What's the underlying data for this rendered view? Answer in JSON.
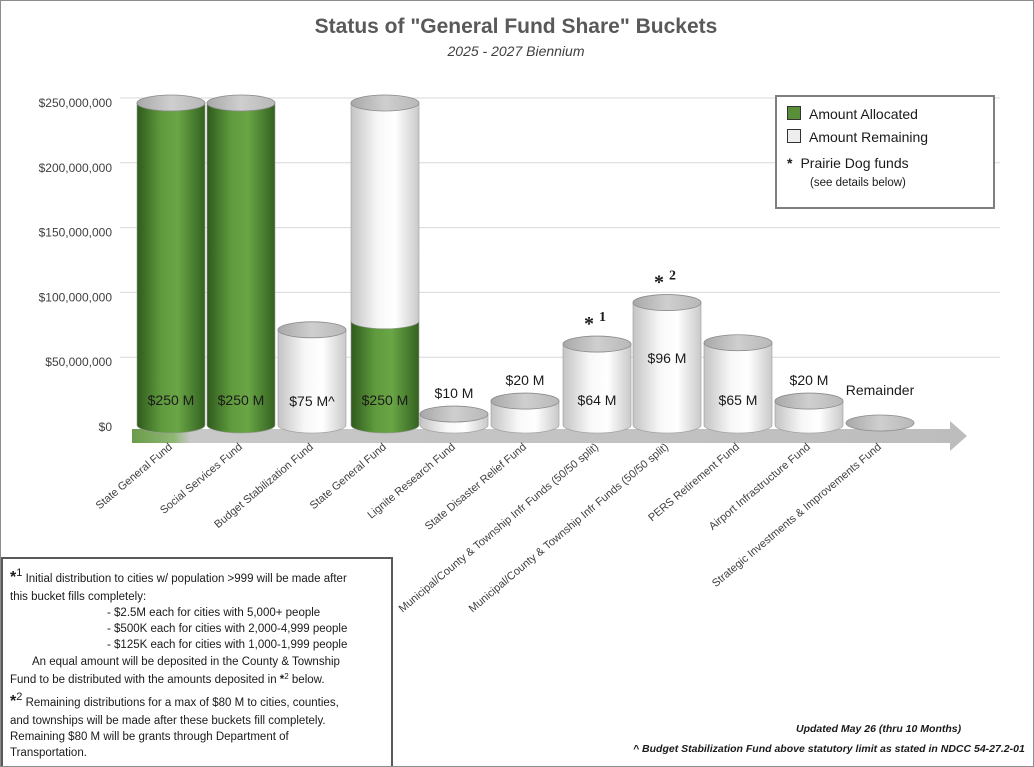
{
  "chart_data": {
    "type": "bar",
    "title": "Status of \"General Fund Share\" Buckets",
    "subtitle": "2025 - 2027 Biennium",
    "ylim": [
      0,
      250000000
    ],
    "yticks": [
      "$0",
      "$50,000,000",
      "$100,000,000",
      "$150,000,000",
      "$200,000,000",
      "$250,000,000"
    ],
    "categories": [
      "State General Fund",
      "Social Services Fund",
      "Budget Stabilization Fund",
      "State General Fund",
      "Lignite Research Fund",
      "State Disaster Relief Fund",
      "Municipal/County & Township Infr Funds (50/50 split)",
      "Municipal/County & Township Infr Funds (50/50 split)",
      "PERS Retirement Fund",
      "Airport Infrastructure Fund",
      "Strategic Investments & Improvements Fund"
    ],
    "series": [
      {
        "name": "Amount Allocated",
        "values": [
          250000000,
          250000000,
          0,
          82000000,
          0,
          0,
          0,
          0,
          0,
          0,
          0
        ]
      },
      {
        "name": "Amount Remaining",
        "values": [
          0,
          0,
          75000000,
          168000000,
          10000000,
          20000000,
          64000000,
          96000000,
          65000000,
          20000000,
          0
        ]
      }
    ],
    "data_labels": [
      "$250 M",
      "$250 M",
      "$75 M^",
      "$250 M",
      "$10 M",
      "$20 M",
      "$64 M",
      "$96 M",
      "$65 M",
      "$20 M",
      "Remainder"
    ],
    "markers": [
      "",
      "",
      "",
      "",
      "",
      "",
      "*1",
      "*2",
      "",
      "",
      ""
    ],
    "legend": {
      "placement": "top-right",
      "note": "(see details below)",
      "marker_label": "Prairie Dog funds"
    },
    "colors": {
      "allocated": "#5a8f3a",
      "remaining": "#ececec"
    }
  },
  "legend": {
    "allocated": "Amount Allocated",
    "remaining": "Amount Remaining",
    "star": "*",
    "prairie": "Prairie Dog funds",
    "details": "(see details below)"
  },
  "notes": {
    "n1_star": "*",
    "n1_sup": "1",
    "n1_line1": "Initial distribution to cities w/ population >999 will be made after",
    "n1_line2": "this bucket fills completely:",
    "n1_b1": "- $2.5M each for cities with 5,000+ people",
    "n1_b2": "- $500K each for cities with 2,000-4,999 people",
    "n1_b3": "- $125K each for cities with 1,000-1,999 people",
    "n1_eq1": "An equal amount will be deposited in the County & Township",
    "n1_eq2a": "Fund to be distributed with the amounts deposited in ",
    "n1_eq2_star": "*",
    "n1_eq2_sup": "2",
    "n1_eq2b": " below.",
    "n2_star": "*",
    "n2_sup": "2",
    "n2_line1": "Remaining distributions for a max of $80 M to cities, counties,",
    "n2_line2": "and townships will be made after these buckets fill completely.",
    "n2_line3": "Remaining $80 M will be grants through Department of",
    "n2_line4": "Transportation."
  },
  "footer": {
    "updated": "Updated May 26 (thru 10 Months)",
    "note": "^ Budget Stabilization Fund above statutory limit as stated in NDCC 54-27.2-01"
  }
}
